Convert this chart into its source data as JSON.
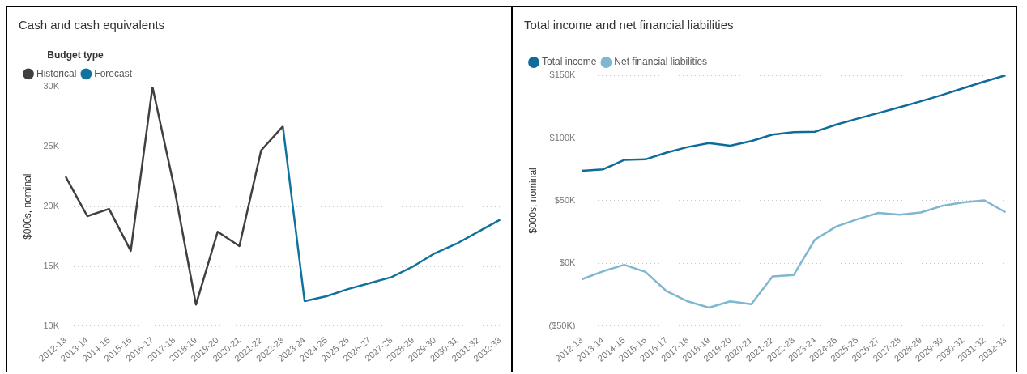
{
  "chart_data": [
    {
      "type": "line",
      "title": "Cash and cash equivalents",
      "ylabel": "$000s, nominal",
      "legend_title": "Budget type",
      "legend": "top left",
      "grid": "y",
      "marker": "none",
      "line_style": "solid",
      "categories": [
        "2012-13",
        "2013-14",
        "2014-15",
        "2015-16",
        "2016-17",
        "2017-18",
        "2018-19",
        "2019-20",
        "2020-21",
        "2021-22",
        "2022-23",
        "2023-24",
        "2024-25",
        "2025-26",
        "2026-27",
        "2027-28",
        "2028-29",
        "2029-30",
        "2030-31",
        "2031-32",
        "2032-33"
      ],
      "ylim": [
        10000,
        30000
      ],
      "yticks": [
        {
          "value": 10000,
          "label": "10K"
        },
        {
          "value": 15000,
          "label": "15K"
        },
        {
          "value": 20000,
          "label": "20K"
        },
        {
          "value": 25000,
          "label": "25K"
        },
        {
          "value": 30000,
          "label": "30K"
        }
      ],
      "series": [
        {
          "name": "Historical",
          "color": "#404040",
          "values": [
            22500,
            19200,
            19800,
            16300,
            30000,
            21600,
            11800,
            17900,
            16700,
            24700,
            26700,
            null,
            null,
            null,
            null,
            null,
            null,
            null,
            null,
            null,
            null
          ]
        },
        {
          "name": "Forecast",
          "color": "#12729e",
          "values": [
            null,
            null,
            null,
            null,
            null,
            null,
            null,
            null,
            null,
            null,
            26700,
            12100,
            12500,
            13100,
            13600,
            14100,
            15000,
            16100,
            16900,
            17900,
            18900
          ]
        }
      ]
    },
    {
      "type": "line",
      "title": "Total income and net financial liabilities",
      "ylabel": "$000s, nominal",
      "legend": "top left",
      "grid": "y",
      "marker": "none",
      "line_style": "solid",
      "categories": [
        "2012-13",
        "2013-14",
        "2014-15",
        "2015-16",
        "2016-17",
        "2017-18",
        "2018-19",
        "2019-20",
        "2020-21",
        "2021-22",
        "2022-23",
        "2023-24",
        "2024-25",
        "2025-26",
        "2026-27",
        "2027-28",
        "2028-29",
        "2029-30",
        "2030-31",
        "2031-32",
        "2032-33"
      ],
      "ylim": [
        -50000,
        150000
      ],
      "yticks": [
        {
          "value": -50000,
          "label": "($50K)"
        },
        {
          "value": 0,
          "label": "$0K"
        },
        {
          "value": 50000,
          "label": "$50K"
        },
        {
          "value": 100000,
          "label": "$100K"
        },
        {
          "value": 150000,
          "label": "$150K"
        }
      ],
      "series": [
        {
          "name": "Total income",
          "color": "#0f6c9a",
          "values": [
            73900,
            75000,
            82500,
            83000,
            88400,
            92800,
            95900,
            93900,
            97600,
            102700,
            104700,
            105000,
            110600,
            115400,
            119900,
            124500,
            129300,
            134300,
            139700,
            145000,
            150000
          ]
        },
        {
          "name": "Net financial liabilities",
          "color": "#80b7d0",
          "values": [
            -12600,
            -6200,
            -1100,
            -6700,
            -22100,
            -30200,
            -35200,
            -30200,
            -32400,
            -10300,
            -9200,
            19000,
            29400,
            35200,
            40300,
            38900,
            40600,
            45900,
            48700,
            50300,
            40800
          ]
        }
      ]
    }
  ]
}
